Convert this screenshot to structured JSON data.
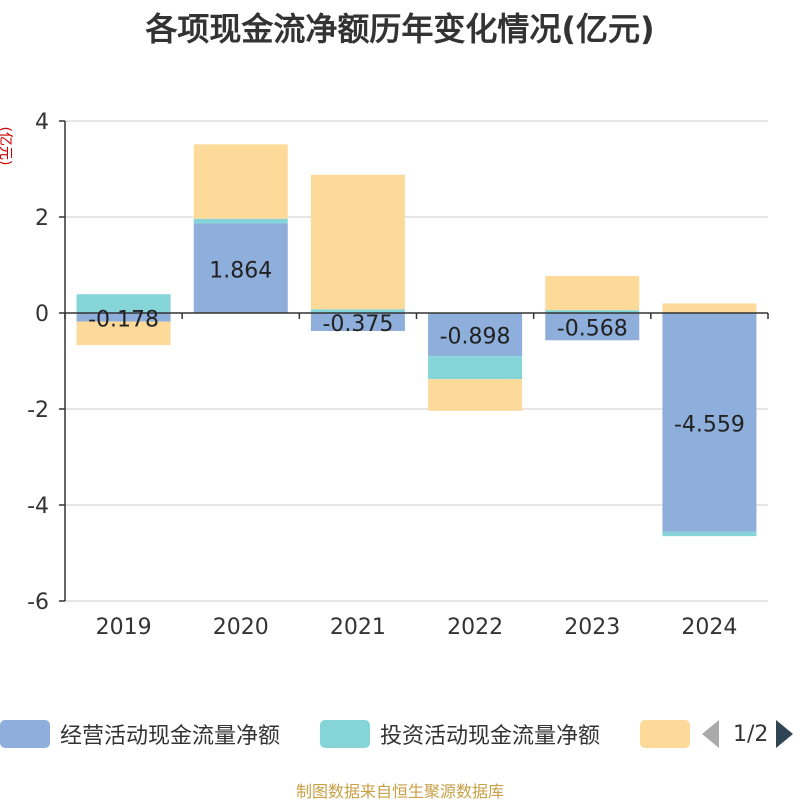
{
  "chart_data": {
    "type": "bar",
    "stacked": true,
    "title": "各项现金流净额历年变化情况(亿元)",
    "ylabel": "(亿元)",
    "xlabel": "",
    "categories": [
      "2019",
      "2020",
      "2021",
      "2022",
      "2023",
      "2024"
    ],
    "ylim": [
      -6,
      4
    ],
    "yticks": [
      4,
      2,
      0,
      -2,
      -4,
      -6
    ],
    "grid": true,
    "series": [
      {
        "name": "经营活动现金流量净额",
        "color": "#8eaedb",
        "values": [
          -0.178,
          1.864,
          -0.375,
          -0.898,
          -0.568,
          -4.559
        ],
        "labels": [
          "-0.178",
          "1.864",
          "-0.375",
          "-0.898",
          "-0.568",
          "-4.559"
        ]
      },
      {
        "name": "投资活动现金流量净额",
        "color": "#85d5d8",
        "values": [
          0.39,
          0.1,
          0.08,
          -0.48,
          0.06,
          -0.09
        ]
      },
      {
        "name": "",
        "color": "#fdd99a",
        "values": [
          -0.49,
          1.55,
          2.8,
          -0.66,
          0.71,
          0.2
        ]
      }
    ]
  },
  "legend": {
    "items": [
      {
        "label": "经营活动现金流量净额",
        "color": "#8eaedb"
      },
      {
        "label": "投资活动现金流量净额",
        "color": "#85d5d8"
      },
      {
        "label": "",
        "color": "#fdd99a"
      }
    ],
    "page": "1/2"
  },
  "footer": "制图数据来自恒生聚源数据库"
}
